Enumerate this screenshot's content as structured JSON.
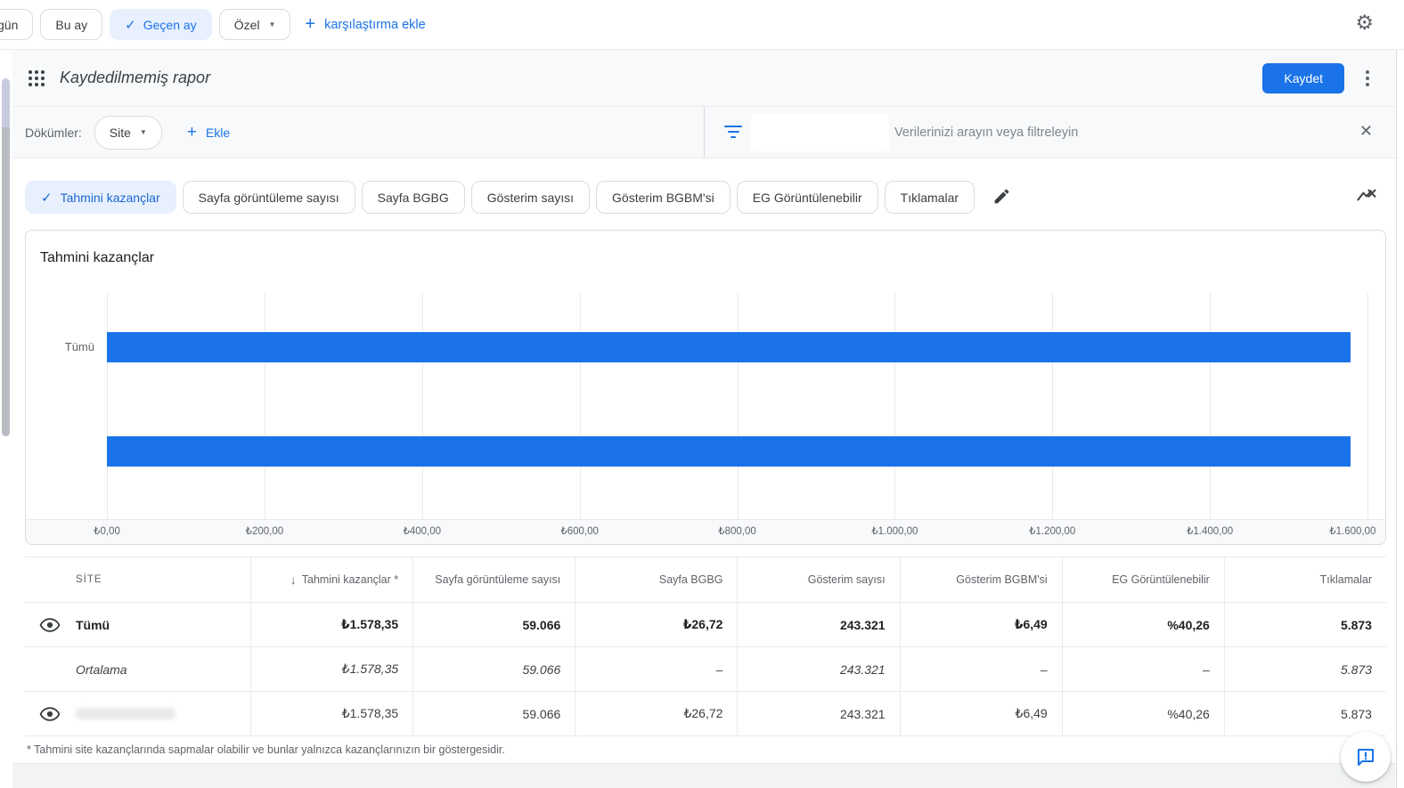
{
  "colors": {
    "accent": "#1a73e8",
    "selected_chip_bg": "#e8f0fe",
    "bar_color": "#1a73e8",
    "surface_gray": "#f8f9fa"
  },
  "icons": {
    "check": "✓",
    "dropdown": "▼",
    "plus": "+",
    "close": "✕",
    "gear": "⚙",
    "sort_desc": "↓"
  },
  "topbar": {
    "buttons": [
      {
        "label": "gün"
      },
      {
        "label": "Bu ay"
      },
      {
        "label": "Geçen ay",
        "selected": true
      },
      {
        "label": "Özel",
        "dropdown": true
      }
    ],
    "add_comparison_label": "karşılaştırma ekle"
  },
  "header": {
    "title": "Kaydedilmemiş rapor",
    "save_label": "Kaydet"
  },
  "breakdown": {
    "label": "Dökümler:",
    "dimension": "Site",
    "add_label": "Ekle",
    "search_placeholder": "Verilerinizi arayın veya filtreleyin"
  },
  "chips": [
    {
      "label": "Tahmini kazançlar",
      "selected": true
    },
    {
      "label": "Sayfa görüntüleme sayısı"
    },
    {
      "label": "Sayfa BGBG"
    },
    {
      "label": "Gösterim sayısı"
    },
    {
      "label": "Gösterim BGBM'si"
    },
    {
      "label": "EG Görüntülenebilir"
    },
    {
      "label": "Tıklamalar"
    }
  ],
  "chart_data": {
    "type": "bar",
    "orientation": "horizontal",
    "title": "Tahmini kazançlar",
    "categories": [
      "Tümü",
      ""
    ],
    "values": [
      1578.35,
      1578.35
    ],
    "xlim": [
      0,
      1600
    ],
    "x_ticks": [
      "₺0,00",
      "₺200,00",
      "₺400,00",
      "₺600,00",
      "₺800,00",
      "₺1.000,00",
      "₺1.200,00",
      "₺1.400,00",
      "₺1.600,00"
    ],
    "grid": true,
    "bar_color": "#1a73e8"
  },
  "table": {
    "columns": [
      {
        "label": "SİTE"
      },
      {
        "label": "Tahmini kazançlar *",
        "sorted": "desc"
      },
      {
        "label": "Sayfa görüntüleme sayısı"
      },
      {
        "label": "Sayfa BGBG"
      },
      {
        "label": "Gösterim sayısı"
      },
      {
        "label": "Gösterim BGBM'si"
      },
      {
        "label": "EG Görüntülenebilir"
      },
      {
        "label": "Tıklamalar"
      }
    ],
    "rows": [
      {
        "name": "Tümü",
        "cells": [
          "₺1.578,35",
          "59.066",
          "₺26,72",
          "243.321",
          "₺6,49",
          "%40,26",
          "5.873"
        ]
      },
      {
        "name": "Ortalama",
        "cells": [
          "₺1.578,35",
          "59.066",
          "–",
          "243.321",
          "–",
          "–",
          "5.873"
        ]
      },
      {
        "name": "",
        "cells": [
          "₺1.578,35",
          "59.066",
          "₺26,72",
          "243.321",
          "₺6,49",
          "%40,26",
          "5.873"
        ]
      }
    ]
  },
  "footnote": "* Tahmini site kazançlarında sapmalar olabilir ve bunlar yalnızca kazançlarınızın bir göstergesidir."
}
